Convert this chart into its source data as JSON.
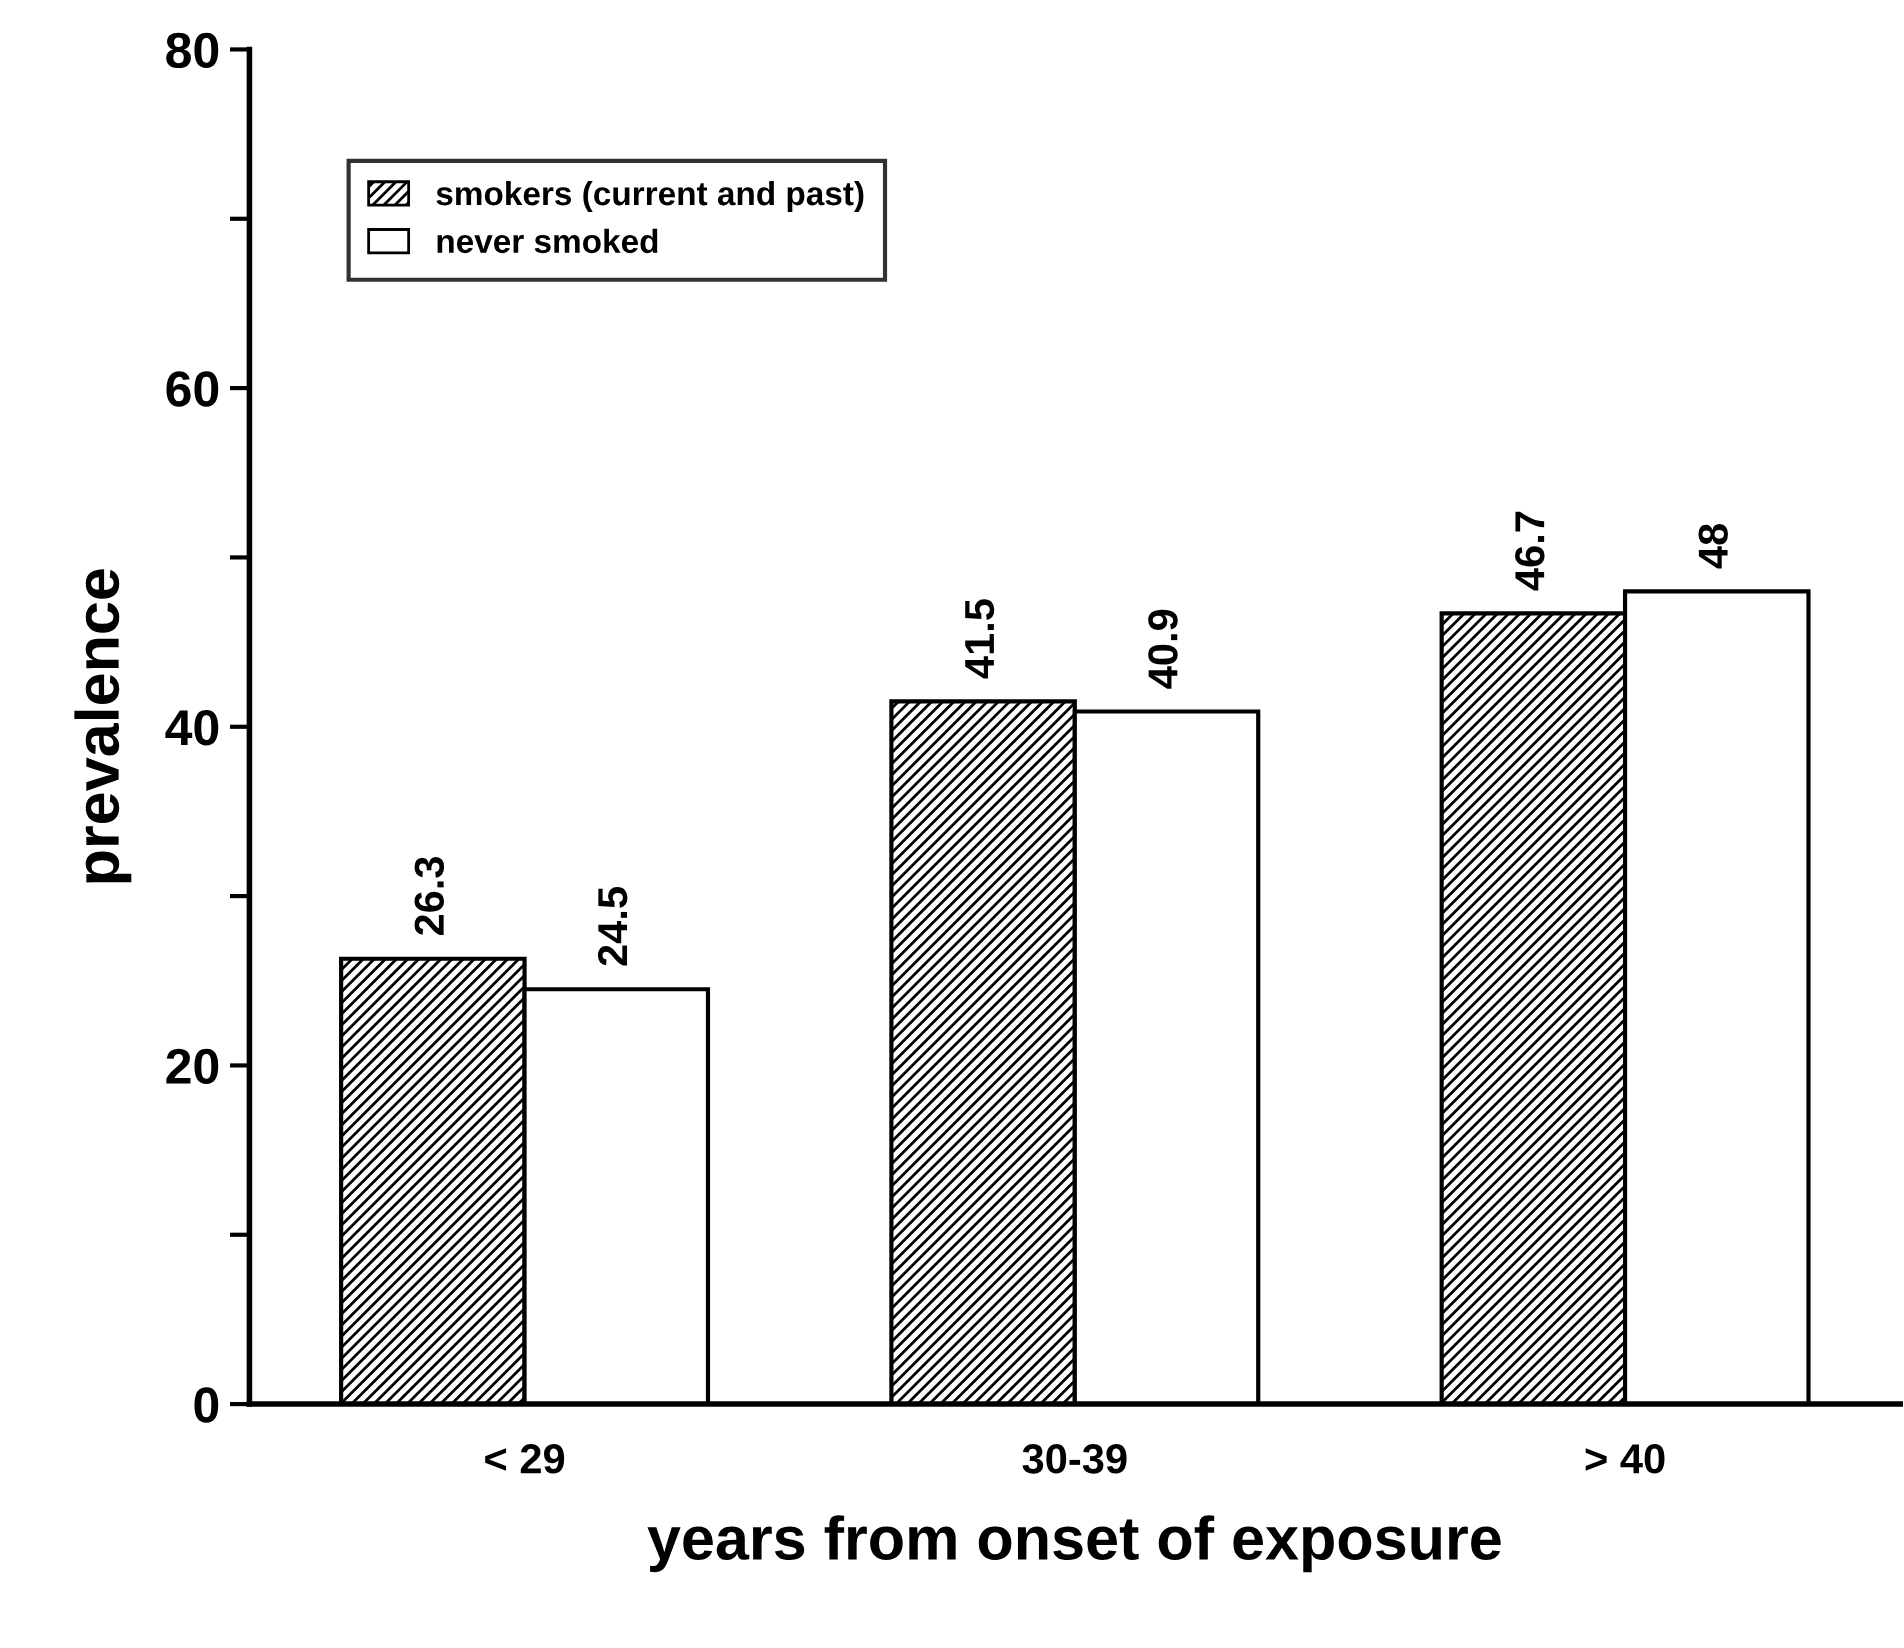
{
  "chart_data": {
    "type": "bar",
    "xlabel": "years from onset of exposure",
    "ylabel": "prevalence",
    "categories": [
      "< 29",
      "30-39",
      "> 40"
    ],
    "series": [
      {
        "name": "smokers (current and past)",
        "color": "#000000",
        "values": [
          26.3,
          41.5,
          46.7
        ]
      },
      {
        "name": "never smoked",
        "color": "#ffffff",
        "values": [
          24.5,
          40.9,
          48
        ]
      }
    ],
    "ylim": [
      0,
      80
    ],
    "yticks": [
      0,
      {
        "value": 10,
        "label": null
      },
      20,
      {
        "value": 30,
        "label": null
      },
      40,
      {
        "value": 50,
        "label": null
      },
      60,
      {
        "value": 70,
        "label": null
      },
      80
    ],
    "data_labels": true,
    "legend": "top left",
    "grid": false
  }
}
